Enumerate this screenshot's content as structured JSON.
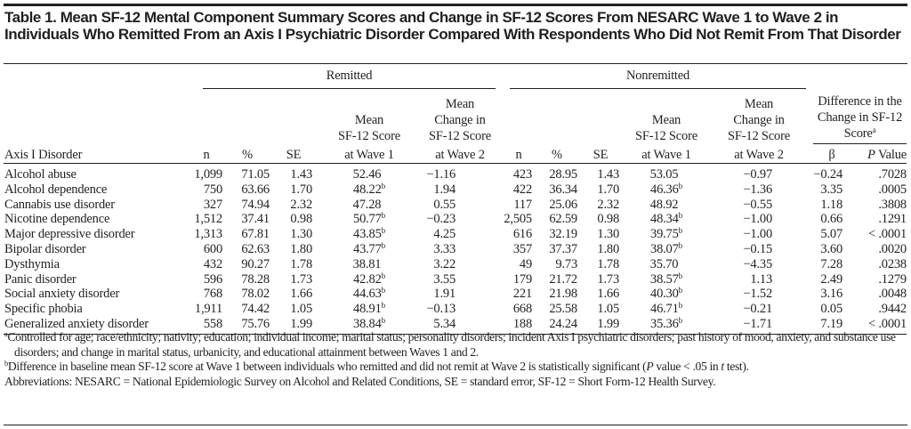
{
  "title": "Table 1. Mean SF-12 Mental Component Summary Scores and Change in SF-12 Scores From NESARC Wave 1 to Wave 2 in Individuals Who Remitted From an Axis I Psychiatric Disorder Compared With Respondents Who Did Not Remit From That Disorder",
  "groups": {
    "remitted": "Remitted",
    "nonremitted": "Nonremitted",
    "difference": "Difference in the Change in SF-12 Score",
    "difference_note": "a"
  },
  "columns": {
    "disorder": "Axis I Disorder",
    "n": "n",
    "pct": "%",
    "se": "SE",
    "mean_w1": [
      "Mean",
      "SF-12 Score",
      "at Wave 1"
    ],
    "mean_change_w2": [
      "Mean",
      "Change in",
      "SF-12 Score",
      "at Wave 2"
    ],
    "beta": "β",
    "p_value_italic": "P",
    "p_value": " Value"
  },
  "rows": [
    {
      "disorder": "Alcohol abuse",
      "r_n": "1,099",
      "r_pct": "71.05",
      "r_se": "1.43",
      "r_mean": "52.46",
      "r_mean_note": "",
      "r_change": "−1.16",
      "n_n": "423",
      "n_pct": "28.95",
      "n_se": "1.43",
      "n_mean": "53.05",
      "n_mean_note": "",
      "n_change": "−0.97",
      "beta": "−0.24",
      "p": ".7028"
    },
    {
      "disorder": "Alcohol dependence",
      "r_n": "750",
      "r_pct": "63.66",
      "r_se": "1.70",
      "r_mean": "48.22",
      "r_mean_note": "b",
      "r_change": "1.94",
      "n_n": "422",
      "n_pct": "36.34",
      "n_se": "1.70",
      "n_mean": "46.36",
      "n_mean_note": "b",
      "n_change": "−1.36",
      "beta": "3.35",
      "p": ".0005"
    },
    {
      "disorder": "Cannabis use disorder",
      "r_n": "327",
      "r_pct": "74.94",
      "r_se": "2.32",
      "r_mean": "47.28",
      "r_mean_note": "",
      "r_change": "0.55",
      "n_n": "117",
      "n_pct": "25.06",
      "n_se": "2.32",
      "n_mean": "48.92",
      "n_mean_note": "",
      "n_change": "−0.55",
      "beta": "1.18",
      "p": ".3808"
    },
    {
      "disorder": "Nicotine dependence",
      "r_n": "1,512",
      "r_pct": "37.41",
      "r_se": "0.98",
      "r_mean": "50.77",
      "r_mean_note": "b",
      "r_change": "−0.23",
      "n_n": "2,505",
      "n_pct": "62.59",
      "n_se": "0.98",
      "n_mean": "48.34",
      "n_mean_note": "b",
      "n_change": "−1.00",
      "beta": "0.66",
      "p": ".1291"
    },
    {
      "disorder": "Major depressive disorder",
      "r_n": "1,313",
      "r_pct": "67.81",
      "r_se": "1.30",
      "r_mean": "43.85",
      "r_mean_note": "b",
      "r_change": "4.25",
      "n_n": "616",
      "n_pct": "32.19",
      "n_se": "1.30",
      "n_mean": "39.75",
      "n_mean_note": "b",
      "n_change": "−1.00",
      "beta": "5.07",
      "p": "< .0001"
    },
    {
      "disorder": "Bipolar disorder",
      "r_n": "600",
      "r_pct": "62.63",
      "r_se": "1.80",
      "r_mean": "43.77",
      "r_mean_note": "b",
      "r_change": "3.33",
      "n_n": "357",
      "n_pct": "37.37",
      "n_se": "1.80",
      "n_mean": "38.07",
      "n_mean_note": "b",
      "n_change": "−0.15",
      "beta": "3.60",
      "p": ".0020"
    },
    {
      "disorder": "Dysthymia",
      "r_n": "432",
      "r_pct": "90.27",
      "r_se": "1.78",
      "r_mean": "38.81",
      "r_mean_note": "",
      "r_change": "3.22",
      "n_n": "49",
      "n_pct": "9.73",
      "n_se": "1.78",
      "n_mean": "35.70",
      "n_mean_note": "",
      "n_change": "−4.35",
      "beta": "7.28",
      "p": ".0238"
    },
    {
      "disorder": "Panic disorder",
      "r_n": "596",
      "r_pct": "78.28",
      "r_se": "1.73",
      "r_mean": "42.82",
      "r_mean_note": "b",
      "r_change": "3.55",
      "n_n": "179",
      "n_pct": "21.72",
      "n_se": "1.73",
      "n_mean": "38.57",
      "n_mean_note": "b",
      "n_change": "1.13",
      "beta": "2.49",
      "p": ".1279"
    },
    {
      "disorder": "Social anxiety disorder",
      "r_n": "768",
      "r_pct": "78.02",
      "r_se": "1.66",
      "r_mean": "44.63",
      "r_mean_note": "b",
      "r_change": "1.91",
      "n_n": "221",
      "n_pct": "21.98",
      "n_se": "1.66",
      "n_mean": "40.30",
      "n_mean_note": "b",
      "n_change": "−1.52",
      "beta": "3.16",
      "p": ".0048"
    },
    {
      "disorder": "Specific phobia",
      "r_n": "1,911",
      "r_pct": "74.42",
      "r_se": "1.05",
      "r_mean": "48.91",
      "r_mean_note": "b",
      "r_change": "−0.13",
      "n_n": "668",
      "n_pct": "25.58",
      "n_se": "1.05",
      "n_mean": "46.71",
      "n_mean_note": "b",
      "n_change": "−0.21",
      "beta": "0.05",
      "p": ".9442"
    },
    {
      "disorder": "Generalized anxiety disorder",
      "r_n": "558",
      "r_pct": "75.76",
      "r_se": "1.99",
      "r_mean": "38.84",
      "r_mean_note": "b",
      "r_change": "5.34",
      "n_n": "188",
      "n_pct": "24.24",
      "n_se": "1.99",
      "n_mean": "35.36",
      "n_mean_note": "b",
      "n_change": "−1.71",
      "beta": "7.19",
      "p": "< .0001"
    }
  ],
  "footnotes": {
    "a_mark": "a",
    "a": "Controlled for age; race/ethnicity; nativity; education; individual income; marital status; personality disorders; incident Axis I psychiatric disorders; past history of mood, anxiety, and substance use disorders; and change in marital status, urbanicity, and educational attainment between Waves 1 and 2.",
    "b_mark": "b",
    "b_1": "Difference in baseline mean SF-12 score at Wave 1 between individuals who remitted and did not remit at Wave 2 is statistically significant (",
    "b_italic_p": "P",
    "b_2": " value < .05 in ",
    "b_italic_t": "t",
    "b_3": " test).",
    "abbreviations": "Abbreviations: NESARC = National Epidemiologic Survey on Alcohol and Related Conditions, SE = standard error, SF-12 = Short Form-12 Health Survey."
  }
}
